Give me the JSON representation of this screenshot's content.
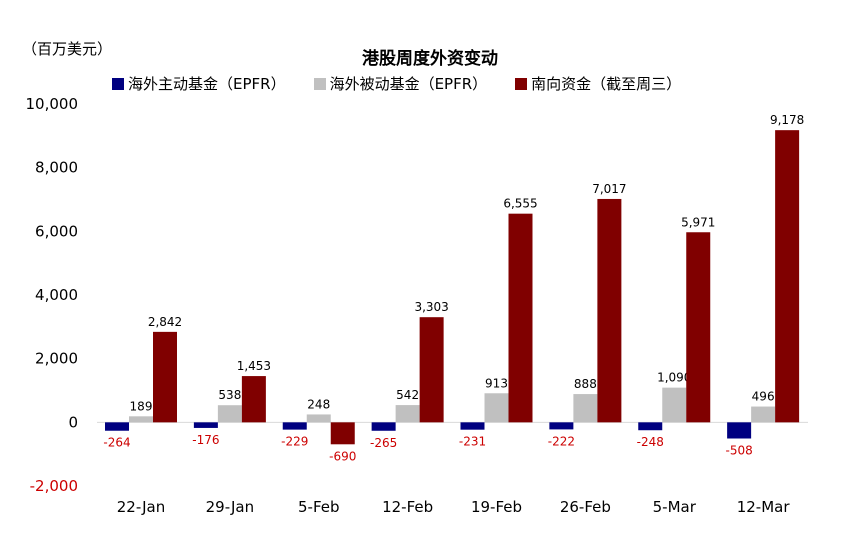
{
  "chart_data": {
    "type": "bar",
    "title": "港股周度外资变动",
    "unit_label": "（百万美元）",
    "categories": [
      "22-Jan",
      "29-Jan",
      "5-Feb",
      "12-Feb",
      "19-Feb",
      "26-Feb",
      "5-Mar",
      "12-Mar"
    ],
    "series": [
      {
        "name": "海外主动基金（EPFR）",
        "color": "#000080",
        "values": [
          -264,
          -176,
          -229,
          -265,
          -231,
          -222,
          -248,
          -508
        ]
      },
      {
        "name": "海外被动基金（EPFR）",
        "color": "#c0c0c0",
        "values": [
          189,
          538,
          248,
          542,
          913,
          888,
          1090,
          496
        ]
      },
      {
        "name": "南向资金（截至周三）",
        "color": "#800000",
        "values": [
          2842,
          1453,
          -690,
          3303,
          6555,
          7017,
          5971,
          9178
        ]
      }
    ],
    "data_labels": [
      [
        "-264",
        "-176",
        "-229",
        "-265",
        "-231",
        "-222",
        "-248",
        "-508"
      ],
      [
        "189",
        "538",
        "248",
        "542",
        "913",
        "888",
        "1,090",
        "496"
      ],
      [
        "2,842",
        "1,453",
        "-690",
        "3,303",
        "6,555",
        "7,017",
        "5,971",
        "9,178"
      ]
    ],
    "negative_label_color": "#cc0000",
    "ylim": [
      -2000,
      10000
    ],
    "yticks": [
      -2000,
      0,
      2000,
      4000,
      6000,
      8000,
      10000
    ],
    "ytick_labels": [
      "-2,000",
      "0",
      "2,000",
      "4,000",
      "6,000",
      "8,000",
      "10,000"
    ],
    "grid": false,
    "legend_position": "top"
  }
}
